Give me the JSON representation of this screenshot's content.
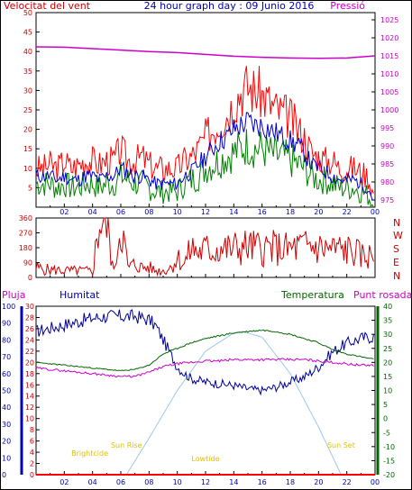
{
  "header": {
    "wind_title": "Velocitat del vent",
    "graph_title": "24 hour graph day : 09 Junio 2016",
    "pressure_title": "Pressió"
  },
  "colors": {
    "wind_gust": "#ff0000",
    "wind_avg": "#0000cc",
    "wind_low": "#008000",
    "pressure": "#cc00cc",
    "direction": "#cc0000",
    "humidity": "#000099",
    "temperature": "#006600",
    "dewpoint": "#cc00cc",
    "sun": "#9ec8e8",
    "rain": "#ff0000",
    "sun_label": "#e0c000",
    "axis_left_red": "#cc0000",
    "axis_blue": "#0000aa",
    "axis_green": "#006600",
    "axis_pink": "#cc00cc"
  },
  "chart_data": [
    {
      "type": "line",
      "name": "wind-panel",
      "title": "Velocitat del vent",
      "x_ticks": [
        "02",
        "04",
        "06",
        "08",
        "10",
        "12",
        "14",
        "16",
        "18",
        "20",
        "22",
        "00"
      ],
      "y_left_ticks": [
        5,
        10,
        15,
        20,
        25,
        30,
        35,
        40,
        45,
        50
      ],
      "y_left_range": [
        0,
        50
      ],
      "y_right_ticks": [
        975,
        980,
        985,
        990,
        995,
        1000,
        1005,
        1010,
        1015,
        1020,
        1025
      ],
      "y_right_range": [
        973,
        1027
      ],
      "series": [
        {
          "name": "gust",
          "x": [
            0,
            0.5,
            1,
            1.5,
            2,
            2.5,
            3,
            3.5,
            4,
            4.5,
            5,
            5.5,
            6,
            6.5,
            7,
            7.5,
            8,
            8.5,
            9,
            9.5,
            10,
            10.5,
            11,
            11.5,
            12,
            12.5,
            13,
            13.5,
            14,
            14.5,
            15,
            15.5,
            16,
            16.5,
            17,
            17.5,
            18,
            18.5,
            19,
            19.5,
            20,
            20.5,
            21,
            21.5,
            22,
            22.5,
            23,
            23.5,
            24
          ],
          "values": [
            10,
            10,
            11,
            10,
            12,
            10,
            11,
            12,
            12,
            11,
            12,
            12,
            15,
            12,
            12,
            13,
            11,
            10,
            10,
            10,
            10,
            12,
            13,
            15,
            18,
            20,
            22,
            24,
            27,
            30,
            31,
            30,
            29,
            27,
            25,
            24,
            23,
            20,
            18,
            14,
            13,
            12,
            12,
            10,
            10,
            10,
            9,
            8,
            2
          ]
        },
        {
          "name": "average",
          "x": [
            0,
            0.5,
            1,
            1.5,
            2,
            2.5,
            3,
            3.5,
            4,
            4.5,
            5,
            5.5,
            6,
            6.5,
            7,
            7.5,
            8,
            8.5,
            9,
            9.5,
            10,
            10.5,
            11,
            11.5,
            12,
            12.5,
            13,
            13.5,
            14,
            14.5,
            15,
            15.5,
            16,
            16.5,
            17,
            17.5,
            18,
            18.5,
            19,
            19.5,
            20,
            20.5,
            21,
            21.5,
            22,
            22.5,
            23,
            23.5,
            24
          ],
          "values": [
            8,
            8,
            8,
            7,
            8,
            7,
            7,
            8,
            8,
            7,
            8,
            8,
            10,
            9,
            8,
            8,
            7,
            6,
            6,
            6,
            6,
            8,
            9,
            11,
            13,
            15,
            17,
            18,
            20,
            21,
            22,
            21,
            21,
            20,
            19,
            18,
            17,
            16,
            14,
            11,
            10,
            9,
            8,
            7,
            7,
            7,
            6,
            5,
            1
          ]
        },
        {
          "name": "low",
          "x": [
            0,
            0.5,
            1,
            1.5,
            2,
            2.5,
            3,
            3.5,
            4,
            4.5,
            5,
            5.5,
            6,
            6.5,
            7,
            7.5,
            8,
            8.5,
            9,
            9.5,
            10,
            10.5,
            11,
            11.5,
            12,
            12.5,
            13,
            13.5,
            14,
            14.5,
            15,
            15.5,
            16,
            16.5,
            17,
            17.5,
            18,
            18.5,
            19,
            19.5,
            20,
            20.5,
            21,
            21.5,
            22,
            22.5,
            23,
            23.5,
            24
          ],
          "values": [
            6,
            6,
            6,
            5,
            6,
            5,
            5,
            6,
            6,
            5,
            6,
            6,
            8,
            7,
            6,
            6,
            5,
            4,
            4,
            4,
            4,
            6,
            7,
            8,
            10,
            11,
            12,
            13,
            14,
            15,
            16,
            15,
            15,
            14,
            13,
            13,
            12,
            11,
            10,
            8,
            7,
            7,
            6,
            5,
            5,
            5,
            4,
            3,
            0
          ]
        },
        {
          "name": "pressure",
          "axis": "right",
          "x": [
            0,
            2,
            4,
            6,
            8,
            10,
            12,
            14,
            16,
            18,
            20,
            22,
            24
          ],
          "values": [
            1017.5,
            1017.4,
            1017,
            1016.6,
            1016.2,
            1015.9,
            1015.4,
            1014.9,
            1014.6,
            1014.4,
            1014.3,
            1014.4,
            1015
          ]
        }
      ]
    },
    {
      "type": "line",
      "name": "direction-panel",
      "x_ticks": [],
      "y_left_ticks": [
        0,
        90,
        180,
        270,
        360
      ],
      "y_left_range": [
        0,
        360
      ],
      "y_right_labels": [
        "N",
        "W",
        "S",
        "E",
        "N"
      ],
      "series": [
        {
          "name": "direction",
          "x": [
            0,
            0.5,
            1,
            1.5,
            2,
            2.5,
            3,
            3.5,
            4,
            4.5,
            5,
            5.5,
            6,
            6.5,
            7,
            7.5,
            8,
            8.5,
            9,
            9.5,
            10,
            10.5,
            11,
            11.5,
            12,
            12.5,
            13,
            13.5,
            14,
            14.5,
            15,
            15.5,
            16,
            16.5,
            17,
            17.5,
            18,
            18.5,
            19,
            19.5,
            20,
            20.5,
            21,
            21.5,
            22,
            22.5,
            23,
            23.5,
            24
          ],
          "values": [
            60,
            50,
            45,
            45,
            40,
            40,
            40,
            40,
            35,
            340,
            340,
            30,
            340,
            60,
            80,
            60,
            60,
            40,
            40,
            60,
            120,
            80,
            180,
            150,
            170,
            160,
            180,
            170,
            175,
            180,
            185,
            180,
            175,
            180,
            175,
            170,
            170,
            180,
            185,
            190,
            180,
            175,
            170,
            170,
            165,
            160,
            130,
            130,
            130
          ]
        }
      ]
    },
    {
      "type": "line",
      "name": "atmosphere-panel",
      "x_ticks": [
        "02",
        "04",
        "06",
        "08",
        "10",
        "12",
        "14",
        "16",
        "18",
        "20",
        "22",
        "00"
      ],
      "legend": [
        "Pluja",
        "Humitat",
        "Temperatura",
        "Punt rosada"
      ],
      "y_rain_ticks": [
        0,
        2,
        4,
        6,
        8,
        10,
        12,
        14,
        16,
        18,
        20,
        22,
        24,
        26,
        28,
        30
      ],
      "y_humidity_ticks": [
        0,
        10,
        20,
        30,
        40,
        50,
        60,
        70,
        80,
        90,
        100
      ],
      "y_temp_ticks": [
        -20,
        -15,
        -10,
        -5,
        0,
        5,
        10,
        15,
        20,
        25,
        30,
        35,
        40
      ],
      "sun_events": [
        {
          "label": "Sun Rise",
          "hour": 6.4
        },
        {
          "label": "Brightcide",
          "hour": 3.8
        },
        {
          "label": "Lowtide",
          "hour": 12
        },
        {
          "label": "Sun Set",
          "hour": 21.6
        }
      ],
      "series": [
        {
          "name": "humidity",
          "axis": "humidity",
          "x": [
            0,
            1,
            2,
            3,
            4,
            5,
            6,
            7,
            8,
            8.5,
            9,
            9.5,
            10,
            10.5,
            11,
            12,
            13,
            14,
            15,
            16,
            17,
            18,
            19,
            20,
            21,
            22,
            23,
            24
          ],
          "values": [
            85,
            87,
            89,
            91,
            93,
            94,
            94,
            94,
            92,
            88,
            80,
            72,
            64,
            60,
            57,
            55,
            54,
            53,
            51,
            50,
            52,
            55,
            58,
            64,
            73,
            78,
            81,
            82
          ]
        },
        {
          "name": "temperature",
          "axis": "temp",
          "x": [
            0,
            1,
            2,
            3,
            4,
            5,
            6,
            7,
            8,
            9,
            10,
            11,
            12,
            13,
            14,
            15,
            16,
            17,
            18,
            19,
            20,
            21,
            22,
            23,
            24
          ],
          "values": [
            20,
            19.5,
            19,
            18.5,
            18,
            17.5,
            17,
            17.5,
            19,
            23,
            25,
            27,
            28.5,
            29.5,
            30.5,
            31,
            31.5,
            31,
            30,
            28.5,
            27,
            24.5,
            23,
            22,
            21
          ]
        },
        {
          "name": "dewpoint",
          "axis": "temp",
          "x": [
            0,
            1,
            2,
            3,
            4,
            5,
            6,
            7,
            8,
            9,
            10,
            11,
            12,
            13,
            14,
            15,
            16,
            17,
            18,
            19,
            20,
            21,
            22,
            23,
            24
          ],
          "values": [
            18,
            17.5,
            17,
            16.5,
            16,
            15.5,
            15,
            15,
            16.5,
            18.5,
            19.5,
            20,
            20.5,
            20.5,
            21,
            21,
            21,
            21,
            21,
            21,
            20.5,
            20,
            19.5,
            19,
            19
          ]
        },
        {
          "name": "sun_elevation",
          "axis": "temp",
          "x": [
            6.4,
            8,
            10,
            12,
            14,
            14.6,
            16,
            18,
            20,
            21.6
          ],
          "values": [
            -20,
            -7,
            10,
            24,
            30.5,
            31,
            29,
            16,
            -3,
            -20
          ]
        },
        {
          "name": "rain",
          "axis": "rain",
          "x": [
            0,
            24
          ],
          "values": [
            0,
            0
          ]
        }
      ]
    }
  ]
}
